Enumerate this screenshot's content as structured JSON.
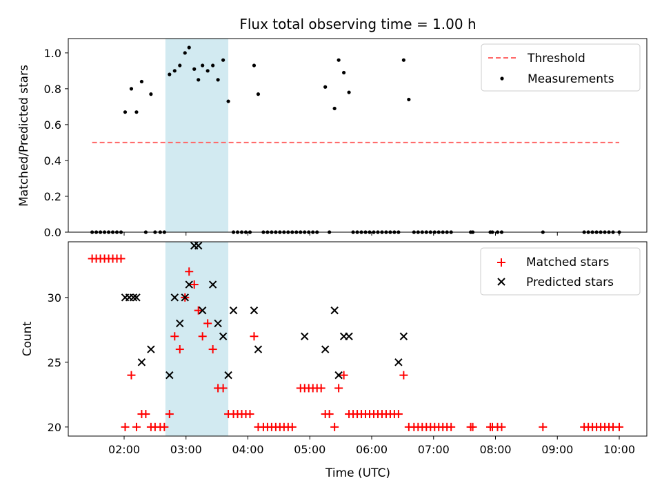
{
  "figure": {
    "title": "Flux total observing time = 1.00 h",
    "xlabel": "Time (UTC)",
    "x_ticks": [
      "02:00",
      "03:00",
      "04:00",
      "05:00",
      "06:00",
      "07:00",
      "08:00",
      "09:00",
      "10:00"
    ],
    "highlight_span": {
      "start": "02:40",
      "end": "03:41",
      "color": "#add8e6"
    }
  },
  "chart_data": [
    {
      "type": "scatter",
      "ylabel": "Matched/Predicted stars",
      "ylim": [
        0,
        1.08
      ],
      "y_ticks": [
        "0.0",
        "0.2",
        "0.4",
        "0.6",
        "0.8",
        "1.0"
      ],
      "legend_position": "top-right",
      "threshold": {
        "name": "Threshold",
        "value": 0.5,
        "x_start": "01:29",
        "x_end": "10:00",
        "color": "#ff6666"
      },
      "series": [
        {
          "name": "Measurements",
          "color": "#000000",
          "points": [
            [
              "01:29",
              0
            ],
            [
              "01:33",
              0
            ],
            [
              "01:37",
              0
            ],
            [
              "01:41",
              0
            ],
            [
              "01:45",
              0
            ],
            [
              "01:49",
              0
            ],
            [
              "01:53",
              0
            ],
            [
              "01:57",
              0
            ],
            [
              "02:01",
              0.67
            ],
            [
              "02:07",
              0.8
            ],
            [
              "02:12",
              0.67
            ],
            [
              "02:17",
              0.84
            ],
            [
              "02:21",
              0
            ],
            [
              "02:26",
              0.77
            ],
            [
              "02:30",
              0
            ],
            [
              "02:35",
              0
            ],
            [
              "02:39",
              0
            ],
            [
              "02:44",
              0.88
            ],
            [
              "02:49",
              0.9
            ],
            [
              "02:54",
              0.93
            ],
            [
              "02:59",
              1.0
            ],
            [
              "03:03",
              1.03
            ],
            [
              "03:08",
              0.91
            ],
            [
              "03:12",
              0.85
            ],
            [
              "03:16",
              0.93
            ],
            [
              "03:21",
              0.9
            ],
            [
              "03:26",
              0.93
            ],
            [
              "03:31",
              0.85
            ],
            [
              "03:36",
              0.96
            ],
            [
              "03:41",
              0.73
            ],
            [
              "03:46",
              0
            ],
            [
              "03:50",
              0
            ],
            [
              "03:54",
              0
            ],
            [
              "03:58",
              0
            ],
            [
              "04:02",
              0
            ],
            [
              "04:06",
              0.93
            ],
            [
              "04:10",
              0.77
            ],
            [
              "04:15",
              0
            ],
            [
              "04:19",
              0
            ],
            [
              "04:23",
              0
            ],
            [
              "04:27",
              0
            ],
            [
              "04:31",
              0
            ],
            [
              "04:35",
              0
            ],
            [
              "04:39",
              0
            ],
            [
              "04:43",
              0
            ],
            [
              "04:47",
              0
            ],
            [
              "04:51",
              0
            ],
            [
              "04:55",
              0
            ],
            [
              "04:59",
              0
            ],
            [
              "05:03",
              0
            ],
            [
              "05:07",
              0
            ],
            [
              "05:15",
              0.81
            ],
            [
              "05:19",
              0
            ],
            [
              "05:24",
              0.69
            ],
            [
              "05:28",
              0.96
            ],
            [
              "05:33",
              0.89
            ],
            [
              "05:38",
              0.78
            ],
            [
              "05:42",
              0
            ],
            [
              "05:46",
              0
            ],
            [
              "05:50",
              0
            ],
            [
              "05:54",
              0
            ],
            [
              "05:58",
              0
            ],
            [
              "06:02",
              0
            ],
            [
              "06:06",
              0
            ],
            [
              "06:10",
              0
            ],
            [
              "06:14",
              0
            ],
            [
              "06:18",
              0
            ],
            [
              "06:22",
              0
            ],
            [
              "06:26",
              0
            ],
            [
              "06:31",
              0.96
            ],
            [
              "06:36",
              0.74
            ],
            [
              "06:41",
              0
            ],
            [
              "06:45",
              0
            ],
            [
              "06:49",
              0
            ],
            [
              "06:53",
              0
            ],
            [
              "06:57",
              0
            ],
            [
              "07:01",
              0
            ],
            [
              "07:05",
              0
            ],
            [
              "07:09",
              0
            ],
            [
              "07:13",
              0
            ],
            [
              "07:17",
              0
            ],
            [
              "07:36",
              0
            ],
            [
              "07:38",
              0
            ],
            [
              "07:55",
              0
            ],
            [
              "07:57",
              0
            ],
            [
              "08:02",
              0
            ],
            [
              "08:06",
              0
            ],
            [
              "08:46",
              0
            ],
            [
              "09:26",
              0
            ],
            [
              "09:30",
              0
            ],
            [
              "09:34",
              0
            ],
            [
              "09:38",
              0
            ],
            [
              "09:42",
              0
            ],
            [
              "09:46",
              0
            ],
            [
              "09:50",
              0
            ],
            [
              "09:54",
              0
            ],
            [
              "10:00",
              0
            ]
          ]
        }
      ]
    },
    {
      "type": "scatter",
      "ylabel": "Count",
      "ylim": [
        19.3,
        34.3
      ],
      "y_ticks": [
        "20",
        "25",
        "30"
      ],
      "legend_position": "top-right",
      "series": [
        {
          "name": "Matched stars",
          "marker": "plus",
          "color": "#ff0000",
          "points": [
            [
              "01:29",
              33
            ],
            [
              "01:33",
              33
            ],
            [
              "01:37",
              33
            ],
            [
              "01:41",
              33
            ],
            [
              "01:45",
              33
            ],
            [
              "01:49",
              33
            ],
            [
              "01:53",
              33
            ],
            [
              "01:57",
              33
            ],
            [
              "02:01",
              20
            ],
            [
              "02:07",
              24
            ],
            [
              "02:12",
              20
            ],
            [
              "02:17",
              21
            ],
            [
              "02:21",
              21
            ],
            [
              "02:26",
              20
            ],
            [
              "02:30",
              20
            ],
            [
              "02:35",
              20
            ],
            [
              "02:39",
              20
            ],
            [
              "02:44",
              21
            ],
            [
              "02:49",
              27
            ],
            [
              "02:54",
              26
            ],
            [
              "02:59",
              30
            ],
            [
              "03:03",
              32
            ],
            [
              "03:08",
              31
            ],
            [
              "03:12",
              29
            ],
            [
              "03:16",
              27
            ],
            [
              "03:21",
              28
            ],
            [
              "03:26",
              26
            ],
            [
              "03:31",
              23
            ],
            [
              "03:36",
              23
            ],
            [
              "03:41",
              21
            ],
            [
              "03:46",
              21
            ],
            [
              "03:50",
              21
            ],
            [
              "03:54",
              21
            ],
            [
              "03:58",
              21
            ],
            [
              "04:02",
              21
            ],
            [
              "04:06",
              27
            ],
            [
              "04:10",
              20
            ],
            [
              "04:15",
              20
            ],
            [
              "04:19",
              20
            ],
            [
              "04:23",
              20
            ],
            [
              "04:27",
              20
            ],
            [
              "04:31",
              20
            ],
            [
              "04:35",
              20
            ],
            [
              "04:39",
              20
            ],
            [
              "04:43",
              20
            ],
            [
              "04:51",
              23
            ],
            [
              "04:55",
              23
            ],
            [
              "04:59",
              23
            ],
            [
              "05:03",
              23
            ],
            [
              "05:07",
              23
            ],
            [
              "05:11",
              23
            ],
            [
              "05:15",
              21
            ],
            [
              "05:19",
              21
            ],
            [
              "05:24",
              20
            ],
            [
              "05:28",
              23
            ],
            [
              "05:33",
              24
            ],
            [
              "05:38",
              21
            ],
            [
              "05:42",
              21
            ],
            [
              "05:46",
              21
            ],
            [
              "05:50",
              21
            ],
            [
              "05:54",
              21
            ],
            [
              "05:58",
              21
            ],
            [
              "06:02",
              21
            ],
            [
              "06:06",
              21
            ],
            [
              "06:10",
              21
            ],
            [
              "06:14",
              21
            ],
            [
              "06:18",
              21
            ],
            [
              "06:22",
              21
            ],
            [
              "06:26",
              21
            ],
            [
              "06:31",
              24
            ],
            [
              "06:36",
              20
            ],
            [
              "06:41",
              20
            ],
            [
              "06:45",
              20
            ],
            [
              "06:49",
              20
            ],
            [
              "06:53",
              20
            ],
            [
              "06:57",
              20
            ],
            [
              "07:01",
              20
            ],
            [
              "07:05",
              20
            ],
            [
              "07:09",
              20
            ],
            [
              "07:13",
              20
            ],
            [
              "07:17",
              20
            ],
            [
              "07:36",
              20
            ],
            [
              "07:38",
              20
            ],
            [
              "07:55",
              20
            ],
            [
              "07:57",
              20
            ],
            [
              "08:02",
              20
            ],
            [
              "08:06",
              20
            ],
            [
              "08:46",
              20
            ],
            [
              "09:26",
              20
            ],
            [
              "09:30",
              20
            ],
            [
              "09:34",
              20
            ],
            [
              "09:38",
              20
            ],
            [
              "09:42",
              20
            ],
            [
              "09:46",
              20
            ],
            [
              "09:50",
              20
            ],
            [
              "09:54",
              20
            ],
            [
              "10:00",
              20
            ]
          ]
        },
        {
          "name": "Predicted stars",
          "marker": "x",
          "color": "#000000",
          "points": [
            [
              "02:01",
              30
            ],
            [
              "02:05",
              30
            ],
            [
              "02:09",
              30
            ],
            [
              "02:12",
              30
            ],
            [
              "02:17",
              25
            ],
            [
              "02:26",
              26
            ],
            [
              "02:44",
              24
            ],
            [
              "02:49",
              30
            ],
            [
              "02:54",
              28
            ],
            [
              "02:59",
              30
            ],
            [
              "03:03",
              31
            ],
            [
              "03:08",
              34
            ],
            [
              "03:12",
              34
            ],
            [
              "03:16",
              29
            ],
            [
              "03:26",
              31
            ],
            [
              "03:31",
              28
            ],
            [
              "03:36",
              27
            ],
            [
              "03:41",
              24
            ],
            [
              "03:46",
              29
            ],
            [
              "04:06",
              29
            ],
            [
              "04:10",
              26
            ],
            [
              "04:55",
              27
            ],
            [
              "05:15",
              26
            ],
            [
              "05:24",
              29
            ],
            [
              "05:28",
              24
            ],
            [
              "05:33",
              27
            ],
            [
              "05:38",
              27
            ],
            [
              "06:26",
              25
            ],
            [
              "06:31",
              27
            ]
          ]
        }
      ]
    }
  ]
}
